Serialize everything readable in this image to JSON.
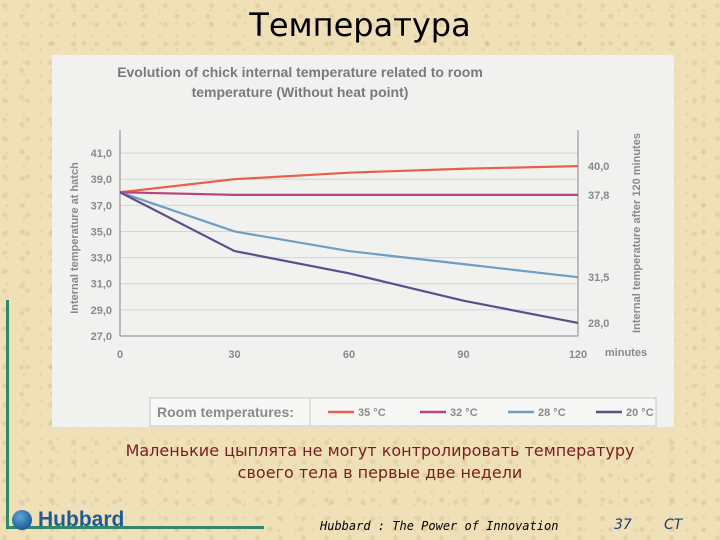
{
  "page_title": "Температура",
  "caption_line1": "Маленькие цыплята не могут контролировать температуру",
  "caption_line2": "своего тела в первые две недели",
  "footer": {
    "logo_text": "Hubbard",
    "tagline": "Hubbard : The Power of Innovation",
    "page_number": "37",
    "initials": "CT"
  },
  "colors": {
    "title": "#000000",
    "caption": "#7b1d1d",
    "rule": "#2f8a6d",
    "logo": "#1e5a96"
  },
  "chart_data": {
    "type": "line",
    "title_line1": "Evolution of chick internal temperature related to room",
    "title_line2": "temperature (Without heat point)",
    "ylabel": "Internal temperature at hatch",
    "ylabel_right": "Internal temperature after 120 minutes",
    "x_unit_label": "minutes",
    "xlim": [
      0,
      120
    ],
    "ylim": [
      27,
      42
    ],
    "x_ticks": [
      0,
      30,
      60,
      90,
      120
    ],
    "x_tick_labels": [
      "0",
      "30",
      "60",
      "90",
      "120"
    ],
    "y_ticks": [
      27,
      29,
      31,
      33,
      35,
      37,
      39,
      41
    ],
    "y_tick_labels": [
      "27,0",
      "29,0",
      "31,0",
      "33,0",
      "35,0",
      "37,0",
      "39,0",
      "41,0"
    ],
    "grid": "horizontal",
    "legend_title": "Room temperatures:",
    "legend_position": "bottom",
    "series": [
      {
        "name": "35 °C",
        "color": "#e8604c",
        "x": [
          0,
          30,
          60,
          90,
          120
        ],
        "y": [
          38.0,
          39.0,
          39.5,
          39.8,
          40.0
        ],
        "end_label": "40,0"
      },
      {
        "name": "32 °C",
        "color": "#b9457e",
        "x": [
          0,
          30,
          60,
          90,
          120
        ],
        "y": [
          38.0,
          37.8,
          37.8,
          37.8,
          37.8
        ],
        "end_label": "37,8"
      },
      {
        "name": "28 °C",
        "color": "#6e9ec4",
        "x": [
          0,
          30,
          60,
          90,
          120
        ],
        "y": [
          38.0,
          35.0,
          33.5,
          32.5,
          31.5
        ],
        "end_label": "31,5"
      },
      {
        "name": "20 °C",
        "color": "#5a4e8f",
        "x": [
          0,
          30,
          60,
          90,
          120
        ],
        "y": [
          38.0,
          33.5,
          31.8,
          29.7,
          28.0
        ],
        "end_label": "28,0"
      }
    ]
  }
}
